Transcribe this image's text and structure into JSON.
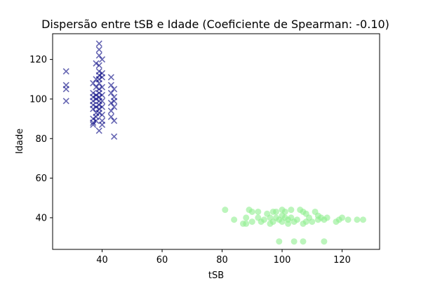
{
  "chart_data": {
    "type": "scatter",
    "title": "Dispersão entre tSB e Idade (Coeficiente de Spearman: -0.10)",
    "xlabel": "tSB",
    "ylabel": "Idade",
    "xlim": [
      23.5,
      132.5
    ],
    "ylim": [
      24,
      133
    ],
    "xticks": [
      40,
      60,
      80,
      100,
      120
    ],
    "yticks": [
      40,
      60,
      80,
      100,
      120
    ],
    "grid": false,
    "series": [
      {
        "marker": "x",
        "color": "#000080",
        "points": [
          [
            28,
            114
          ],
          [
            28,
            107
          ],
          [
            28,
            105
          ],
          [
            28,
            99
          ],
          [
            37,
            108
          ],
          [
            37,
            103
          ],
          [
            37,
            101
          ],
          [
            37,
            99
          ],
          [
            37,
            97
          ],
          [
            37,
            95
          ],
          [
            37,
            90
          ],
          [
            37,
            88
          ],
          [
            37,
            87
          ],
          [
            38,
            118
          ],
          [
            38,
            110
          ],
          [
            38,
            106
          ],
          [
            38,
            102
          ],
          [
            38,
            100
          ],
          [
            38,
            96
          ],
          [
            38,
            93
          ],
          [
            38,
            91
          ],
          [
            38,
            89
          ],
          [
            39,
            128
          ],
          [
            39,
            125
          ],
          [
            39,
            122
          ],
          [
            39,
            117
          ],
          [
            39,
            114
          ],
          [
            39,
            112
          ],
          [
            39,
            110
          ],
          [
            39,
            108
          ],
          [
            39,
            105
          ],
          [
            39,
            103
          ],
          [
            39,
            101
          ],
          [
            39,
            99
          ],
          [
            39,
            97
          ],
          [
            39,
            95
          ],
          [
            39,
            93
          ],
          [
            39,
            84
          ],
          [
            40,
            120
          ],
          [
            40,
            113
          ],
          [
            40,
            111
          ],
          [
            40,
            106
          ],
          [
            40,
            102
          ],
          [
            40,
            99
          ],
          [
            40,
            96
          ],
          [
            40,
            92
          ],
          [
            40,
            89
          ],
          [
            40,
            87
          ],
          [
            43,
            111
          ],
          [
            43,
            107
          ],
          [
            43,
            103
          ],
          [
            43,
            98
          ],
          [
            43,
            94
          ],
          [
            43,
            91
          ],
          [
            44,
            105
          ],
          [
            44,
            101
          ],
          [
            44,
            99
          ],
          [
            44,
            96
          ],
          [
            44,
            89
          ],
          [
            44,
            81
          ]
        ]
      },
      {
        "marker": "o",
        "color": "#90ee90",
        "points": [
          [
            81,
            44
          ],
          [
            84,
            39
          ],
          [
            87,
            37
          ],
          [
            88,
            40
          ],
          [
            88,
            37
          ],
          [
            89,
            44
          ],
          [
            90,
            38
          ],
          [
            90,
            43
          ],
          [
            92,
            43
          ],
          [
            92,
            40
          ],
          [
            93,
            38
          ],
          [
            94,
            39
          ],
          [
            95,
            42
          ],
          [
            96,
            40
          ],
          [
            96,
            37
          ],
          [
            97,
            43
          ],
          [
            97,
            38
          ],
          [
            98,
            43
          ],
          [
            98,
            40
          ],
          [
            99,
            39
          ],
          [
            99,
            28
          ],
          [
            100,
            44
          ],
          [
            100,
            41
          ],
          [
            100,
            38
          ],
          [
            101,
            43
          ],
          [
            101,
            40
          ],
          [
            102,
            39
          ],
          [
            102,
            37
          ],
          [
            103,
            44
          ],
          [
            103,
            40
          ],
          [
            104,
            38
          ],
          [
            104,
            28
          ],
          [
            105,
            39
          ],
          [
            106,
            44
          ],
          [
            107,
            37
          ],
          [
            107,
            43
          ],
          [
            107,
            28
          ],
          [
            108,
            42
          ],
          [
            108,
            38
          ],
          [
            109,
            40
          ],
          [
            110,
            38
          ],
          [
            111,
            43
          ],
          [
            112,
            41
          ],
          [
            112,
            39
          ],
          [
            113,
            40
          ],
          [
            114,
            39
          ],
          [
            114,
            28
          ],
          [
            115,
            40
          ],
          [
            118,
            38
          ],
          [
            119,
            39
          ],
          [
            120,
            40
          ],
          [
            122,
            39
          ],
          [
            125,
            39
          ],
          [
            127,
            39
          ]
        ]
      }
    ]
  }
}
